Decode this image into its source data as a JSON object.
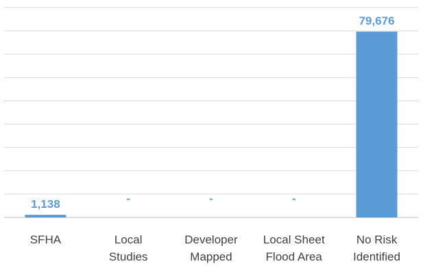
{
  "chart_data": {
    "type": "bar",
    "categories": [
      [
        "SFHA"
      ],
      [
        "Local",
        "Studies"
      ],
      [
        "Developer",
        "Mapped"
      ],
      [
        "Local Sheet",
        "Flood Area"
      ],
      [
        "No Risk",
        "Identified"
      ]
    ],
    "values": [
      1138,
      0,
      0,
      0,
      79676
    ],
    "data_labels": [
      "1,138",
      "-",
      "-",
      "-",
      "79,676"
    ],
    "ylim": [
      0,
      90000
    ],
    "gridline_step": 10000,
    "grid": true,
    "title": "",
    "xlabel": "",
    "ylabel": "",
    "colors": {
      "bar": "#5b9bd5",
      "label": "#5b9bd5",
      "grid": "#d9d9d9",
      "axis": "#bfbfbf",
      "tick_text": "#404040"
    }
  }
}
